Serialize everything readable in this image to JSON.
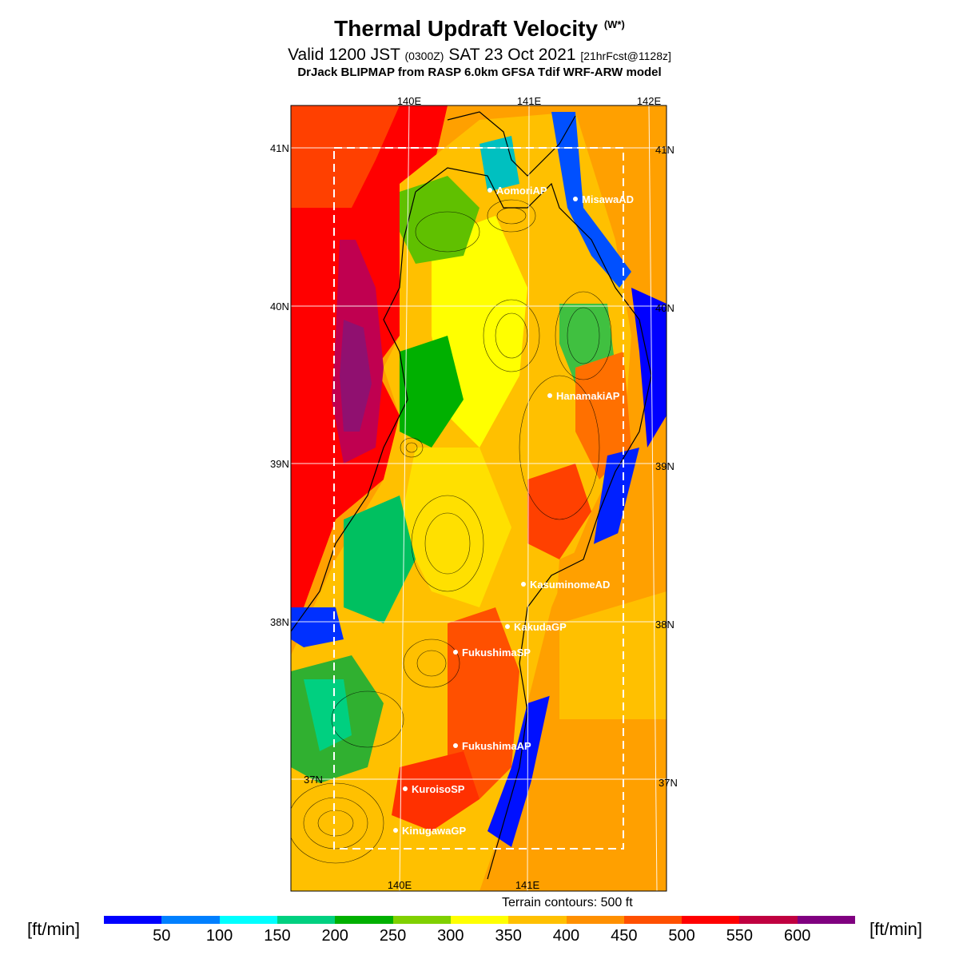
{
  "title": {
    "main": "Thermal Updraft Velocity",
    "sup": "(W*)"
  },
  "subtitle": {
    "valid": "Valid 1200 JST",
    "zulu": "(0300Z)",
    "date": "SAT 23 Oct 2021",
    "fcst": "[21hrFcst@1128z]"
  },
  "model_line": "DrJack BLIPMAP from RASP 6.0km GFSA Tdif WRF-ARW model",
  "longitudes_top": [
    "140E",
    "141E",
    "142E"
  ],
  "longitudes_bottom": [
    "140E",
    "141E"
  ],
  "latitudes_left": [
    "41N",
    "40N",
    "39N",
    "38N",
    "37N"
  ],
  "latitudes_right": [
    "41N",
    "40N",
    "39N",
    "38N",
    "37N"
  ],
  "stations": [
    "AomoriAP",
    "MisawaAD",
    "HanamakiAP",
    "KasuminomeAD",
    "KakudaGP",
    "FukushimaSP",
    "FukushimaAP",
    "KuroisoSP",
    "KinugawaGP"
  ],
  "terrain_note": "Terrain contours: 500 ft",
  "colorbar": {
    "unit": "[ft/min]",
    "ticks": [
      "50",
      "100",
      "150",
      "200",
      "250",
      "300",
      "350",
      "400",
      "450",
      "500",
      "550",
      "600"
    ],
    "colors": [
      "#0000ff",
      "#0080ff",
      "#00ffff",
      "#00d080",
      "#00b000",
      "#80d000",
      "#ffff00",
      "#ffc000",
      "#ff9000",
      "#ff5000",
      "#ff0000",
      "#c00040",
      "#800080"
    ]
  }
}
